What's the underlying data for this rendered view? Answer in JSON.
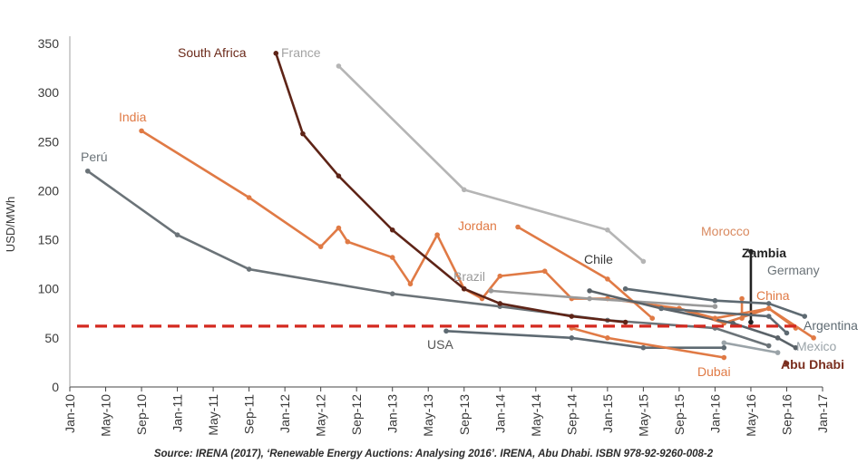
{
  "chart_data": {
    "type": "line",
    "ylabel": "USD/MWh",
    "xlabel": "",
    "ylim": [
      0,
      350
    ],
    "yticks": [
      0,
      50,
      100,
      150,
      200,
      250,
      300,
      350
    ],
    "xticks": [
      "Jan-10",
      "May-10",
      "Sep-10",
      "Jan-11",
      "May-11",
      "Sep-11",
      "Jan-12",
      "May-12",
      "Sep-12",
      "Jan-13",
      "May-13",
      "Sep-13",
      "Jan-14",
      "May-14",
      "Sep-14",
      "Jan-15",
      "May-15",
      "Sep-15",
      "Jan-16",
      "May-16",
      "Sep-16",
      "Jan-17"
    ],
    "grid": false,
    "reference_line": {
      "y": 62,
      "color": "#d42a20",
      "style": "dashed"
    },
    "series": [
      {
        "name": "Perú",
        "color": "#6b7378",
        "label_bold": false,
        "label_color": "#6b7378",
        "points": [
          [
            "Mar-10",
            220
          ],
          [
            "Jan-11",
            155
          ],
          [
            "Sep-11",
            120
          ],
          [
            "Jan-13",
            95
          ],
          [
            "Jan-14",
            82
          ],
          [
            "Jan-15",
            68
          ],
          [
            "Jan-16",
            60
          ],
          [
            "Jul-16",
            42
          ]
        ]
      },
      {
        "name": "India",
        "color": "#e07a45",
        "label_bold": false,
        "label_color": "#e07a45",
        "points": [
          [
            "Sep-10",
            261
          ],
          [
            "Sep-11",
            193
          ],
          [
            "May-12",
            143
          ],
          [
            "Jul-12",
            162
          ],
          [
            "Aug-12",
            148
          ],
          [
            "Jan-13",
            132
          ],
          [
            "Mar-13",
            105
          ],
          [
            "Jun-13",
            155
          ],
          [
            "Sep-13",
            100
          ],
          [
            "Nov-13",
            90
          ],
          [
            "Jan-14",
            113
          ],
          [
            "Jun-14",
            118
          ],
          [
            "Sep-14",
            90
          ],
          [
            "Jan-15",
            90
          ],
          [
            "Sep-15",
            80
          ],
          [
            "Feb-16",
            65
          ],
          [
            "Jul-16",
            80
          ],
          [
            "Oct-16",
            60
          ]
        ]
      },
      {
        "name": "South Africa",
        "color": "#5e2417",
        "label_bold": false,
        "label_color": "#6b2a1a",
        "points": [
          [
            "Dec-11",
            340
          ],
          [
            "Mar-12",
            258
          ],
          [
            "Jul-12",
            215
          ],
          [
            "Jan-13",
            160
          ],
          [
            "Sep-13",
            100
          ],
          [
            "Jan-14",
            85
          ],
          [
            "Sep-14",
            72
          ],
          [
            "Mar-15",
            66
          ]
        ]
      },
      {
        "name": "France",
        "color": "#b5b5b5",
        "label_bold": false,
        "label_color": "#a3a3a3",
        "points": [
          [
            "Jul-12",
            327
          ],
          [
            "Sep-13",
            201
          ],
          [
            "Jan-15",
            160
          ],
          [
            "May-15",
            128
          ]
        ]
      },
      {
        "name": "Jordan",
        "color": "#e07a45",
        "label_bold": false,
        "label_color": "#e07a45",
        "points": [
          [
            "Mar-14",
            163
          ],
          [
            "Jan-15",
            110
          ],
          [
            "Jun-15",
            70
          ]
        ]
      },
      {
        "name": "Brazil",
        "color": "#9a9a9a",
        "label_bold": false,
        "label_color": "#9a9a9a",
        "points": [
          [
            "Dec-13",
            98
          ],
          [
            "Nov-14",
            90
          ],
          [
            "Jan-16",
            82
          ]
        ]
      },
      {
        "name": "Chile",
        "color": "#5a6268",
        "label_bold": false,
        "label_color": "#3a3a3a",
        "points": [
          [
            "Nov-14",
            98
          ],
          [
            "Jul-15",
            80
          ],
          [
            "Mar-16",
            65
          ],
          [
            "Aug-16",
            50
          ],
          [
            "Oct-16",
            40
          ]
        ]
      },
      {
        "name": "USA",
        "color": "#5e6a72",
        "label_bold": false,
        "label_color": "#555555",
        "points": [
          [
            "Jul-13",
            57
          ],
          [
            "Sep-14",
            50
          ],
          [
            "May-15",
            40
          ],
          [
            "Feb-16",
            40
          ]
        ]
      },
      {
        "name": "Dubai",
        "color": "#e07a45",
        "label_bold": false,
        "label_color": "#e07a45",
        "points": [
          [
            "Sep-14",
            60
          ],
          [
            "Jan-15",
            50
          ],
          [
            "Feb-16",
            30
          ]
        ]
      },
      {
        "name": "Morocco",
        "color": "#e07a45",
        "label_bold": false,
        "label_color": "#d98a60",
        "points": [
          [
            "Apr-16",
            90
          ],
          [
            "Apr-16",
            70
          ]
        ]
      },
      {
        "name": "Zambia",
        "color": "#222222",
        "label_bold": true,
        "label_color": "#222222",
        "points": [
          [
            "May-16",
            138
          ],
          [
            "May-16",
            66
          ]
        ]
      },
      {
        "name": "Germany",
        "color": "#5e6a72",
        "label_bold": false,
        "label_color": "#6b7378",
        "points": [
          [
            "Mar-15",
            100
          ],
          [
            "Jan-16",
            88
          ],
          [
            "Jul-16",
            85
          ],
          [
            "Nov-16",
            72
          ]
        ]
      },
      {
        "name": "China",
        "color": "#e07a45",
        "label_bold": false,
        "label_color": "#e07a45",
        "points": [
          [
            "Sep-15",
            80
          ],
          [
            "Jan-16",
            70
          ],
          [
            "Jul-16",
            80
          ],
          [
            "Dec-16",
            50
          ]
        ]
      },
      {
        "name": "Argentina",
        "color": "#5e6a72",
        "label_bold": false,
        "label_color": "#5e6a72",
        "points": [
          [
            "Jul-15",
            80
          ],
          [
            "Jul-16",
            72
          ],
          [
            "Sep-16",
            55
          ]
        ]
      },
      {
        "name": "Mexico",
        "color": "#9aa3a8",
        "label_bold": false,
        "label_color": "#9aa3a8",
        "points": [
          [
            "Feb-16",
            45
          ],
          [
            "Aug-16",
            35
          ]
        ]
      },
      {
        "name": "Abu Dhabi",
        "color": "#7a2e1e",
        "label_bold": true,
        "label_color": "#7a2e1e",
        "points": [
          [
            "Sep-16",
            24
          ]
        ]
      }
    ],
    "source": "Source: IRENA (2017), ‘Renewable Energy Auctions: Analysing 2016’. IRENA, Abu Dhabi. ISBN 978-92-9260-008-2"
  }
}
